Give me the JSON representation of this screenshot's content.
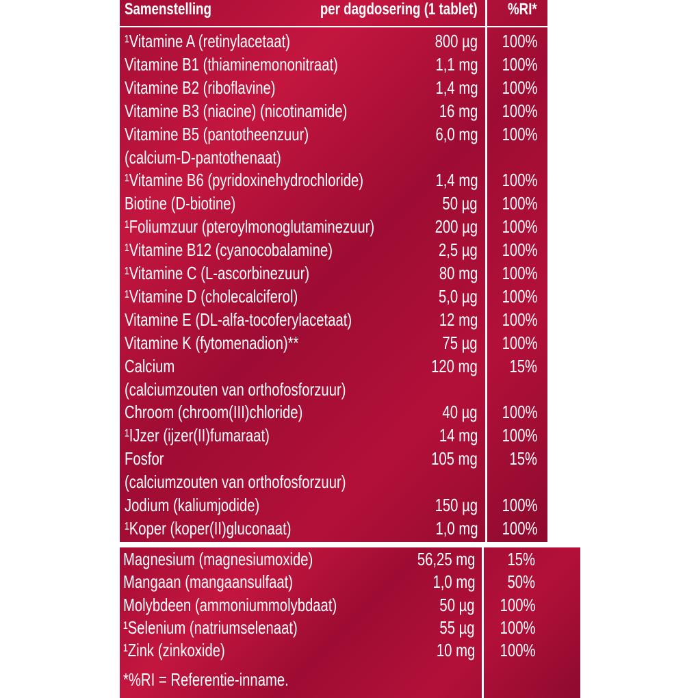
{
  "table": {
    "header": {
      "name": "Samenstelling",
      "amount": "per dagdosering (1 tablet)",
      "ri": "%RI*"
    },
    "rows": [
      {
        "name": "¹Vitamine A (retinylacetaat)",
        "amount": "800 µg",
        "ri": "100%"
      },
      {
        "name": "Vitamine B1 (thiaminemononitraat)",
        "amount": "1,1 mg",
        "ri": "100%"
      },
      {
        "name": "Vitamine B2 (riboflavine)",
        "amount": "1,4 mg",
        "ri": "100%"
      },
      {
        "name": "Vitamine B3 (niacine) (nicotinamide)",
        "amount": "16 mg",
        "ri": "100%"
      },
      {
        "name": "Vitamine B5 (pantotheenzuur)",
        "amount": "6,0 mg",
        "ri": "100%"
      },
      {
        "name": "(calcium-D-pantothenaat)"
      },
      {
        "name": "¹Vitamine B6 (pyridoxinehydrochloride)",
        "amount": "1,4 mg",
        "ri": "100%"
      },
      {
        "name": "Biotine (D-biotine)",
        "amount": "50 µg",
        "ri": "100%"
      },
      {
        "name": "¹Foliumzuur (pteroylmonoglutaminezuur)",
        "amount": "200 µg",
        "ri": "100%"
      },
      {
        "name": "¹Vitamine B12 (cyanocobalamine)",
        "amount": "2,5 µg",
        "ri": "100%"
      },
      {
        "name": "¹Vitamine C (L-ascorbinezuur)",
        "amount": "80 mg",
        "ri": "100%"
      },
      {
        "name": "¹Vitamine D (cholecalciferol)",
        "amount": "5,0 µg",
        "ri": "100%"
      },
      {
        "name": "Vitamine E (DL-alfa-tocoferylacetaat)",
        "amount": "12 mg",
        "ri": "100%"
      },
      {
        "name": "Vitamine K (fytomenadion)**",
        "amount": "75 µg",
        "ri": "100%"
      },
      {
        "name": "Calcium",
        "amount": "120 mg",
        "ri": "15%"
      },
      {
        "name": "(calciumzouten van orthofosforzuur)"
      },
      {
        "name": "Chroom (chroom(III)chloride)",
        "amount": "40 µg",
        "ri": "100%"
      },
      {
        "name": "¹IJzer (ijzer(II)fumaraat)",
        "amount": "14 mg",
        "ri": "100%"
      },
      {
        "name": "Fosfor",
        "amount": "105 mg",
        "ri": "15%"
      },
      {
        "name": "(calciumzouten van orthofosforzuur)"
      },
      {
        "name": "Jodium (kaliumjodide)",
        "amount": "150 µg",
        "ri": "100%"
      },
      {
        "name": "¹Koper (koper(II)gluconaat)",
        "amount": "1,0 mg",
        "ri": "100%"
      }
    ],
    "rows2": [
      {
        "name": "Magnesium (magnesiumoxide)",
        "amount": "56,25 mg",
        "ri": "15%"
      },
      {
        "name": "Mangaan (mangaansulfaat)",
        "amount": "1,0 mg",
        "ri": "50%"
      },
      {
        "name": "Molybdeen (ammoniummolybdaat)",
        "amount": "50 µg",
        "ri": "100%"
      },
      {
        "name": "¹Selenium (natriumselenaat)",
        "amount": "55 µg",
        "ri": "100%"
      },
      {
        "name": "¹Zink (zinkoxide)",
        "amount": "10 mg",
        "ri": "100%"
      }
    ],
    "footnote": "*%RI = Referentie-inname."
  }
}
